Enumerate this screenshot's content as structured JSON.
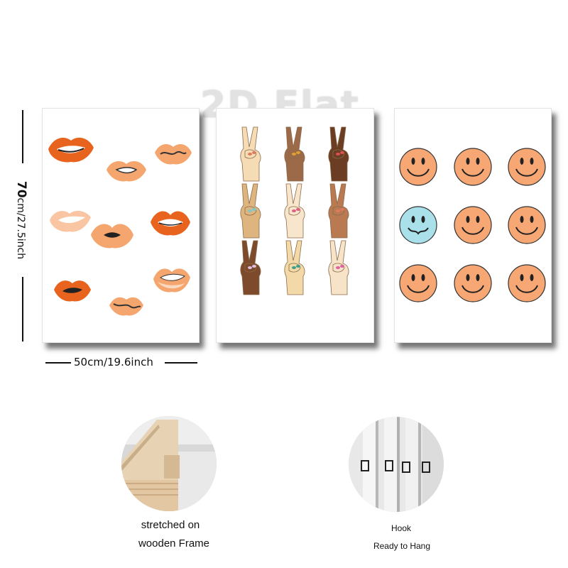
{
  "watermark": "2D Flat",
  "dimensions": {
    "height_label_big": "70",
    "height_label_rest": "cm/27.5inch",
    "width_label": "50cm/19.6inch"
  },
  "panels": [
    {
      "name": "lips-print",
      "motif": "lips",
      "count": 9
    },
    {
      "name": "peace-hands-print",
      "motif": "peace-hand",
      "count": 9
    },
    {
      "name": "smiley-print",
      "motif": "smiley-face",
      "count": 9
    }
  ],
  "colors": {
    "lip_orange": "#e8641e",
    "lip_peach": "#f5a66e",
    "smiley_orange": "#f6a774",
    "smiley_blue": "#a9e0ea"
  },
  "captions": {
    "frame_line1": "stretched on",
    "frame_line2": "wooden Frame",
    "hook_line1": "Hook",
    "hook_line2": "Ready to Hang"
  }
}
